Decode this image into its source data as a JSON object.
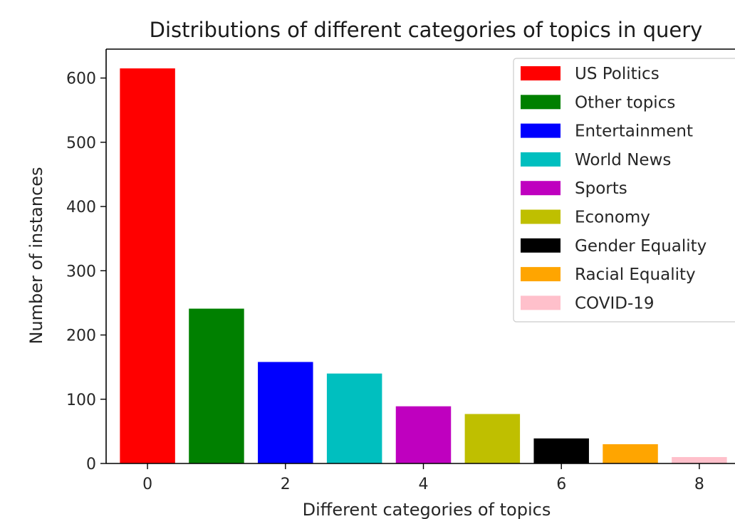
{
  "chart_data": {
    "type": "bar",
    "title": "Distributions of different categories of topics in query",
    "xlabel": "Different categories of topics",
    "ylabel": "Number of instances",
    "x": [
      0,
      1,
      2,
      3,
      4,
      5,
      6,
      7,
      8
    ],
    "values": [
      615,
      241,
      158,
      140,
      89,
      77,
      39,
      30,
      10
    ],
    "series_labels": [
      "US Politics",
      "Other topics",
      "Entertainment",
      "World News",
      "Sports",
      "Economy",
      "Gender Equality",
      "Racial Equality",
      "COVID-19"
    ],
    "colors": [
      "#ff0000",
      "#008000",
      "#0000ff",
      "#00bfbf",
      "#bf00bf",
      "#bfbf00",
      "#000000",
      "#ffa500",
      "#ffc0cb"
    ],
    "xticks": [
      0,
      2,
      4,
      6,
      8
    ],
    "yticks": [
      0,
      100,
      200,
      300,
      400,
      500,
      600
    ],
    "xlim": [
      -0.6,
      8.6
    ],
    "ylim": [
      0,
      645
    ],
    "legend_position": "top-right",
    "grid": false
  }
}
